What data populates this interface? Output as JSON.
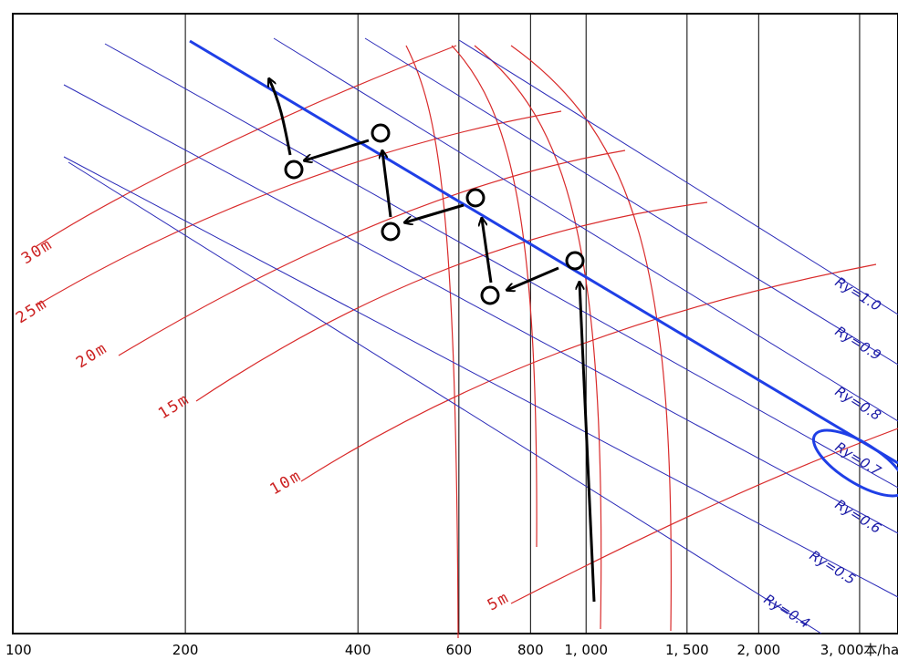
{
  "x_axis": {
    "scale": "log",
    "range": [
      100,
      3500
    ],
    "ticks": [
      {
        "value": 100,
        "label": "100"
      },
      {
        "value": 200,
        "label": "200"
      },
      {
        "value": 400,
        "label": "400"
      },
      {
        "value": 600,
        "label": "600"
      },
      {
        "value": 800,
        "label": "800"
      },
      {
        "value": 1000,
        "label": "1, 000"
      },
      {
        "value": 1500,
        "label": "1, 500"
      },
      {
        "value": 2000,
        "label": "2, 000"
      },
      {
        "value": 3000,
        "label": "3, 000本/ha"
      }
    ]
  },
  "height_lines": [
    {
      "label": "5m"
    },
    {
      "label": "10m"
    },
    {
      "label": "15m"
    },
    {
      "label": "20m"
    },
    {
      "label": "25m"
    },
    {
      "label": "30m"
    }
  ],
  "ry_lines": [
    {
      "label": "Ry=1.0"
    },
    {
      "label": "Ry=0.9"
    },
    {
      "label": "Ry=0.8"
    },
    {
      "label": "Ry=0.7"
    },
    {
      "label": "Ry=0.6"
    },
    {
      "label": "Ry=0.5"
    },
    {
      "label": "Ry=0.4"
    }
  ],
  "colors": {
    "height": "#d92b2b",
    "ry": "#2a2ab8",
    "guide": "#1f3fe6",
    "grid": "#000000",
    "path": "#000000"
  }
}
